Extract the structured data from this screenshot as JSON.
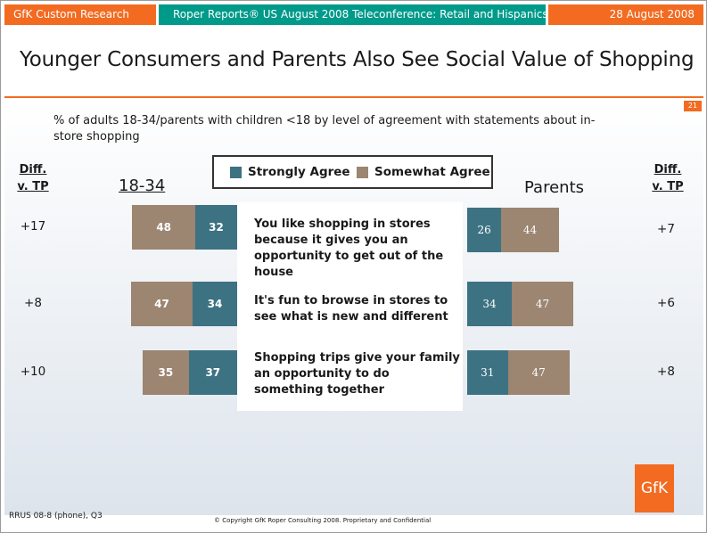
{
  "header": {
    "left": "GfK Custom Research",
    "middle": "Roper Reports® US August 2008 Teleconference: Retail and Hispanics",
    "right": "28 August 2008"
  },
  "title": "Younger Consumers and Parents Also See Social Value of Shopping",
  "page_number": "21",
  "subtitle": "% of adults 18-34/parents with children <18 by level of agreement with statements about in-store shopping",
  "legend": [
    {
      "label": "Strongly Agree",
      "color": "#3d7283"
    },
    {
      "label": "Somewhat Agree",
      "color": "#9c8571"
    }
  ],
  "diff_header": "Diff. v. TP",
  "footer": {
    "left": "RRUS 08-8 (phone), Q3",
    "middle": "© Copyright GfK Roper Consulting 2008.  Proprietary and Confidential"
  },
  "logo": "GfK",
  "chart_data": [
    {
      "type": "bar",
      "orientation": "horizontal",
      "stacked": true,
      "group": "18-34",
      "categories": [
        "You like shopping in stores because it gives you an opportunity to get out of the house",
        "It's fun to browse in stores to see what is new and different",
        "Shopping trips give your family an opportunity to do something together"
      ],
      "series": [
        {
          "name": "Strongly Agree",
          "values": [
            32,
            34,
            37
          ]
        },
        {
          "name": "Somewhat Agree",
          "values": [
            48,
            47,
            35
          ]
        }
      ],
      "diff_vs_tp": [
        "+17",
        "+8",
        "+10"
      ]
    },
    {
      "type": "bar",
      "orientation": "horizontal",
      "stacked": true,
      "group": "Parents",
      "categories": [
        "You like shopping in stores because it gives you an opportunity to get out of the house",
        "It's fun to browse in stores to see what is new and different",
        "Shopping trips give your family an opportunity to do something together"
      ],
      "series": [
        {
          "name": "Strongly Agree",
          "values": [
            26,
            34,
            31
          ]
        },
        {
          "name": "Somewhat Agree",
          "values": [
            44,
            47,
            47
          ]
        }
      ],
      "diff_vs_tp": [
        "+7",
        "+6",
        "+8"
      ]
    }
  ]
}
